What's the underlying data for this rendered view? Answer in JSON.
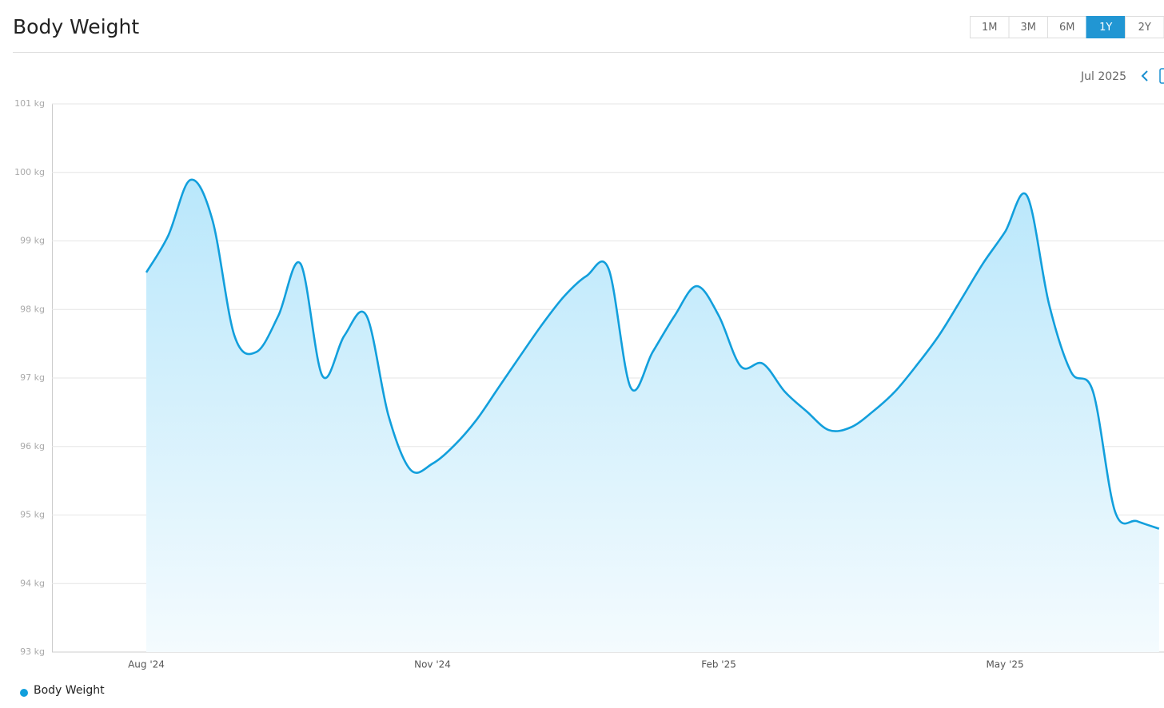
{
  "chart_data": {
    "type": "area",
    "title": "Body Weight",
    "categories": [
      "Aug '24",
      null,
      null,
      null,
      null,
      null,
      null,
      null,
      null,
      null,
      null,
      null,
      null,
      "Nov '24",
      null,
      null,
      null,
      null,
      null,
      null,
      null,
      null,
      null,
      null,
      null,
      null,
      "Feb '25",
      null,
      null,
      null,
      null,
      null,
      null,
      null,
      null,
      null,
      null,
      null,
      null,
      "May '25",
      null,
      null,
      null,
      null,
      null,
      null,
      null
    ],
    "series": [
      {
        "name": "Body Weight",
        "color": "#129fdc",
        "values": [
          98.54,
          99.08,
          99.89,
          99.31,
          97.62,
          97.38,
          97.91,
          98.67,
          97.03,
          97.62,
          97.91,
          96.45,
          95.66,
          95.75,
          96.02,
          96.39,
          96.86,
          97.33,
          97.79,
          98.2,
          98.49,
          98.59,
          96.86,
          97.38,
          97.91,
          98.34,
          97.91,
          97.17,
          97.21,
          96.8,
          96.51,
          96.24,
          96.28,
          96.51,
          96.8,
          97.19,
          97.62,
          98.14,
          98.67,
          99.13,
          99.66,
          98.08,
          97.09,
          96.8,
          95.05,
          94.91,
          94.8
        ]
      }
    ],
    "ylim": [
      93,
      101
    ],
    "yticks": [
      {
        "value": 93,
        "label": "93 kg"
      },
      {
        "value": 94,
        "label": "94 kg"
      },
      {
        "value": 95,
        "label": "95 kg"
      },
      {
        "value": 96,
        "label": "96 kg"
      },
      {
        "value": 97,
        "label": "97 kg"
      },
      {
        "value": 98,
        "label": "98 kg"
      },
      {
        "value": 99,
        "label": "99 kg"
      },
      {
        "value": 100,
        "label": "100 kg"
      },
      {
        "value": 101,
        "label": "101 kg"
      }
    ],
    "grid": true
  },
  "controls": {
    "ranges": [
      "1M",
      "3M",
      "6M",
      "1Y",
      "2Y"
    ],
    "active": "1Y",
    "period": "Jul 2025"
  }
}
